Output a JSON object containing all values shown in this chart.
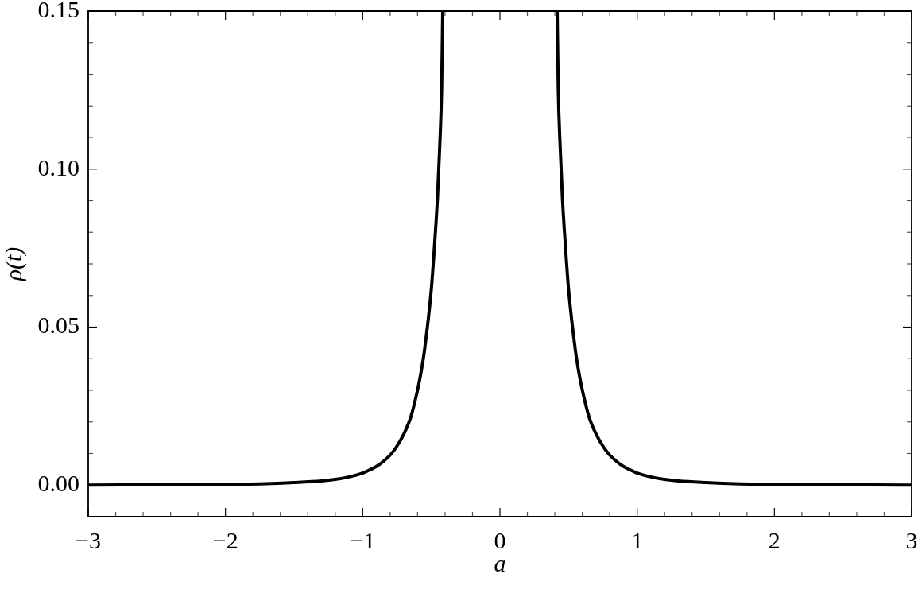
{
  "chart_data": {
    "type": "line",
    "xlabel": "a",
    "ylabel": "ρ(t)",
    "x": [
      -3,
      -2.5,
      -2,
      -1.75,
      -1.5,
      -1.3,
      -1.2,
      -1.1,
      -1,
      -0.94,
      -0.9,
      -0.85,
      -0.8,
      -0.76,
      -0.7,
      -0.65,
      -0.61,
      -0.58,
      -0.55,
      -0.5,
      -0.475,
      -0.455,
      -0.437,
      -0.425,
      -0.417,
      0,
      0.417,
      0.425,
      0.437,
      0.455,
      0.475,
      0.5,
      0.55,
      0.58,
      0.61,
      0.65,
      0.7,
      0.76,
      0.8,
      0.85,
      0.9,
      0.94,
      1,
      1.1,
      1.2,
      1.3,
      1.5,
      1.75,
      2,
      2.5,
      3
    ],
    "values": [
      0,
      0.0001,
      0.0002,
      0.0004,
      0.0008,
      0.0013,
      0.0018,
      0.0026,
      0.0038,
      0.005,
      0.0059,
      0.0075,
      0.0095,
      0.0117,
      0.0162,
      0.0215,
      0.0282,
      0.0345,
      0.0426,
      0.062,
      0.077,
      0.091,
      0.109,
      0.125,
      0.15,
      null,
      0.15,
      0.125,
      0.109,
      0.091,
      0.077,
      0.062,
      0.0426,
      0.0345,
      0.0282,
      0.0215,
      0.0162,
      0.0117,
      0.0095,
      0.0075,
      0.0059,
      0.005,
      0.0038,
      0.0026,
      0.0018,
      0.0013,
      0.0008,
      0.0004,
      0.0002,
      0.0001,
      0
    ],
    "color": "#000000",
    "marker": "none",
    "xlim": [
      -3,
      3
    ],
    "ylim": [
      -0.01,
      0.15
    ],
    "xticks": [
      {
        "value": -3,
        "label": "−3"
      },
      {
        "value": -2.8,
        "label": null
      },
      {
        "value": -2.6,
        "label": null
      },
      {
        "value": -2.4,
        "label": null
      },
      {
        "value": -2.2,
        "label": null
      },
      {
        "value": -2,
        "label": "−2"
      },
      {
        "value": -1.8,
        "label": null
      },
      {
        "value": -1.6,
        "label": null
      },
      {
        "value": -1.4,
        "label": null
      },
      {
        "value": -1.2,
        "label": null
      },
      {
        "value": -1,
        "label": "−1"
      },
      {
        "value": -0.8,
        "label": null
      },
      {
        "value": -0.6,
        "label": null
      },
      {
        "value": -0.4,
        "label": null
      },
      {
        "value": -0.2,
        "label": null
      },
      0,
      {
        "value": 0.2,
        "label": null
      },
      {
        "value": 0.4,
        "label": null
      },
      {
        "value": 0.6,
        "label": null
      },
      {
        "value": 0.8,
        "label": null
      },
      1,
      {
        "value": 1.2,
        "label": null
      },
      {
        "value": 1.4,
        "label": null
      },
      {
        "value": 1.6,
        "label": null
      },
      {
        "value": 1.8,
        "label": null
      },
      2,
      {
        "value": 2.2,
        "label": null
      },
      {
        "value": 2.4,
        "label": null
      },
      {
        "value": 2.6,
        "label": null
      },
      {
        "value": 2.8,
        "label": null
      },
      3
    ],
    "yticks": [
      {
        "value": 0,
        "label": "0.00"
      },
      {
        "value": 0.01,
        "label": null
      },
      {
        "value": 0.02,
        "label": null
      },
      {
        "value": 0.03,
        "label": null
      },
      {
        "value": 0.04,
        "label": null
      },
      {
        "value": 0.05,
        "label": "0.05"
      },
      {
        "value": 0.06,
        "label": null
      },
      {
        "value": 0.07,
        "label": null
      },
      {
        "value": 0.08,
        "label": null
      },
      {
        "value": 0.09,
        "label": null
      },
      {
        "value": 0.1,
        "label": "0.10"
      },
      {
        "value": 0.11,
        "label": null
      },
      {
        "value": 0.12,
        "label": null
      },
      {
        "value": 0.13,
        "label": null
      },
      {
        "value": 0.14,
        "label": null
      },
      {
        "value": 0.15,
        "label": "0.15"
      }
    ]
  }
}
